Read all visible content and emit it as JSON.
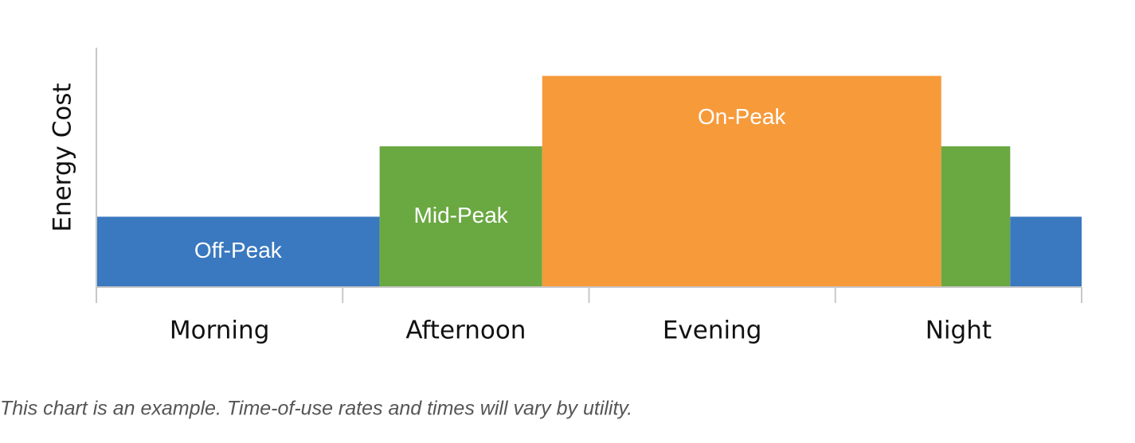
{
  "chart_data": {
    "type": "step",
    "ylabel": "Energy Cost",
    "categories": [
      "Morning",
      "Afternoon",
      "Evening",
      "Night"
    ],
    "xlim": [
      0,
      4
    ],
    "xticks": [
      0,
      1,
      2,
      3,
      4
    ],
    "ylim": [
      0,
      3.4
    ],
    "segments": [
      {
        "name": "Off-Peak",
        "color": "#3a78bf",
        "start": 0,
        "end": 1.15,
        "value": 1
      },
      {
        "name": "Mid-Peak",
        "color": "#6aa842",
        "start": 1.15,
        "end": 1.81,
        "value": 2
      },
      {
        "name": "On-Peak",
        "color": "#f79a3a",
        "start": 1.81,
        "end": 3.43,
        "value": 3
      },
      {
        "name": null,
        "color": "#6aa842",
        "start": 3.43,
        "end": 3.71,
        "value": 2
      },
      {
        "name": null,
        "color": "#3a78bf",
        "start": 3.71,
        "end": 4,
        "value": 1
      }
    ],
    "caption": "This chart is an example. Time-of-use rates and times will vary by utility."
  }
}
